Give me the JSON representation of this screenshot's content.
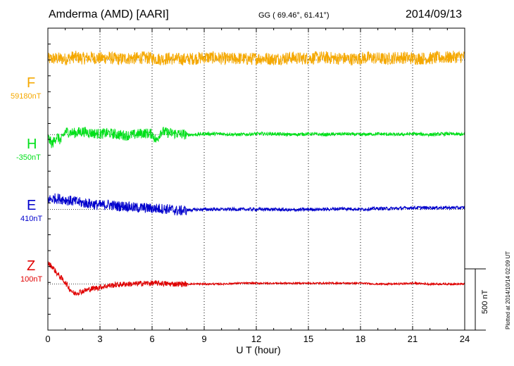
{
  "header": {
    "station": "Amderma (AMD)  [AARI]",
    "coords": "GG ( 69.46°,  61.41°)",
    "date": "2014/09/13"
  },
  "footer": {
    "plotted": "Plotted at 2014/10/14 02:09 UT"
  },
  "colors": {
    "F": "#f5a800",
    "H": "#00e01a",
    "E": "#0000cc",
    "Z": "#e00000",
    "frame": "#000000",
    "grid": "#000000"
  },
  "channels": [
    {
      "key": "F",
      "name": "F",
      "baseline": "59180nT"
    },
    {
      "key": "H",
      "name": "H",
      "baseline": "-350nT"
    },
    {
      "key": "E",
      "name": "E",
      "baseline": "410nT"
    },
    {
      "key": "Z",
      "name": "Z",
      "baseline": "100nT"
    }
  ],
  "chart_data": {
    "type": "line",
    "title": "Amderma (AMD)  [AARI]",
    "xlabel": "U T (hour)",
    "ylabel": "",
    "xlim": [
      0,
      24
    ],
    "xticks": [
      0,
      3,
      6,
      9,
      12,
      15,
      18,
      21,
      24
    ],
    "ylim": [
      -1700,
      200
    ],
    "scale_bar": {
      "label": "500 nT",
      "value": 500
    },
    "grid": "vertical dotted at 3-hour intervals",
    "series": [
      {
        "name": "F",
        "baseline_label": "59180nT",
        "offset_nT": 0,
        "x": [
          0,
          0.5,
          1,
          1.5,
          2,
          2.5,
          3,
          3.5,
          4,
          4.5,
          5,
          5.5,
          6,
          6.5,
          7,
          7.5,
          8,
          8.5,
          9,
          9.5,
          10,
          10.5,
          11,
          11.5,
          12,
          12.5,
          13,
          13.5,
          14,
          14.5,
          15,
          15.5,
          16,
          16.5,
          17,
          17.5,
          18,
          18.5,
          19,
          19.5,
          20,
          20.5,
          21,
          21.5,
          22,
          22.5,
          23,
          23.5,
          24
        ],
        "values": [
          5,
          10,
          5,
          20,
          10,
          15,
          10,
          15,
          5,
          10,
          10,
          15,
          10,
          5,
          10,
          5,
          5,
          10,
          15,
          15,
          10,
          5,
          10,
          5,
          10,
          10,
          5,
          10,
          15,
          10,
          10,
          15,
          15,
          10,
          10,
          5,
          10,
          15,
          10,
          5,
          15,
          15,
          10,
          10,
          10,
          15,
          15,
          20,
          20
        ],
        "noise_amplitude_nT": 40
      },
      {
        "name": "H",
        "baseline_label": "-350nT",
        "offset_nT": -470,
        "x": [
          0,
          0.25,
          0.5,
          0.75,
          1,
          1.5,
          2,
          2.5,
          3,
          3.5,
          4,
          4.5,
          5,
          5.5,
          6,
          6.25,
          6.5,
          7,
          7.5,
          8,
          8.5,
          9,
          10,
          11,
          12,
          13,
          14,
          15,
          16,
          17,
          18,
          19,
          20,
          21,
          22,
          23,
          24
        ],
        "values": [
          -20,
          -60,
          -10,
          -40,
          20,
          10,
          20,
          10,
          5,
          10,
          0,
          -5,
          0,
          10,
          5,
          -40,
          20,
          10,
          5,
          0,
          0,
          5,
          5,
          0,
          5,
          5,
          0,
          5,
          0,
          5,
          0,
          5,
          0,
          5,
          0,
          5,
          0
        ],
        "noise_amplitude_nT": 15
      },
      {
        "name": "E",
        "baseline_label": "410nT",
        "offset_nT": -940,
        "x": [
          0,
          0.5,
          1,
          1.5,
          2,
          2.5,
          3,
          3.5,
          4,
          4.5,
          5,
          5.5,
          6,
          6.5,
          7,
          7.5,
          8,
          9,
          10,
          11,
          12,
          13,
          14,
          15,
          16,
          17,
          18,
          19,
          20,
          21,
          22,
          23,
          24
        ],
        "values": [
          60,
          70,
          60,
          50,
          40,
          35,
          25,
          30,
          20,
          20,
          10,
          10,
          5,
          5,
          0,
          -10,
          -5,
          0,
          0,
          0,
          0,
          0,
          -5,
          0,
          0,
          5,
          0,
          5,
          5,
          10,
          10,
          10,
          10
        ],
        "noise_amplitude_nT": 15
      },
      {
        "name": "Z",
        "baseline_label": "100nT",
        "offset_nT": -1410,
        "x": [
          0,
          0.25,
          0.5,
          0.75,
          1,
          1.25,
          1.5,
          2,
          2.5,
          3,
          3.5,
          4,
          4.5,
          5,
          5.5,
          6,
          6.5,
          7,
          7.5,
          8,
          9,
          10,
          11,
          12,
          13,
          14,
          15,
          16,
          17,
          18,
          19,
          20,
          21,
          22,
          23,
          24
        ],
        "values": [
          130,
          110,
          70,
          40,
          10,
          -30,
          -60,
          -45,
          -30,
          -20,
          -10,
          -5,
          0,
          0,
          5,
          5,
          5,
          0,
          0,
          0,
          0,
          0,
          5,
          5,
          5,
          5,
          5,
          5,
          5,
          5,
          0,
          0,
          5,
          0,
          0,
          0
        ],
        "noise_amplitude_nT": 8
      }
    ]
  }
}
